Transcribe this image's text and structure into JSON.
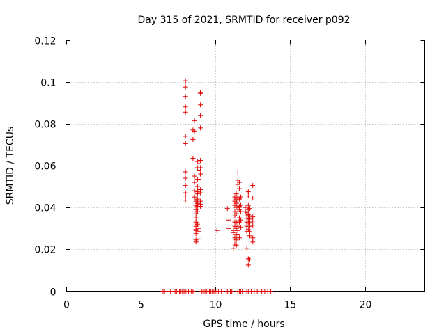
{
  "chart_data": {
    "type": "scatter",
    "title": "Day 315 of 2021, SRMTID for receiver p092",
    "xlabel": "GPS time / hours",
    "ylabel": "SRMTID / TECUs",
    "xlim": [
      0,
      24
    ],
    "ylim": [
      0,
      0.12
    ],
    "xticks": [
      0,
      5,
      10,
      15,
      20
    ],
    "xtick_labels": [
      "0",
      "5",
      "10",
      "15",
      "20"
    ],
    "yticks": [
      0,
      0.02,
      0.04,
      0.06,
      0.08,
      0.1,
      0.12
    ],
    "ytick_labels": [
      "0",
      "0.02",
      "0.04",
      "0.06",
      "0.08",
      "0.1",
      "0.12"
    ],
    "grid": true,
    "marker": "+",
    "color": "#e00000",
    "series": [
      {
        "name": "SRMTID",
        "x": [
          8.0,
          8.0,
          8.0,
          8.0,
          8.0,
          8.0,
          8.0,
          8.0,
          8.0,
          8.0,
          8.0,
          8.0,
          8.0,
          8.5,
          8.5,
          8.5,
          8.6,
          8.6,
          8.6,
          8.6,
          8.6,
          8.6,
          8.7,
          8.7,
          8.7,
          8.7,
          8.7,
          8.7,
          8.7,
          8.7,
          8.7,
          8.7,
          8.7,
          8.7,
          8.8,
          8.8,
          8.8,
          8.8,
          8.8,
          8.8,
          8.8,
          8.8,
          8.8,
          8.8,
          8.8,
          8.9,
          8.9,
          8.9,
          8.9,
          8.9,
          8.9,
          8.9,
          8.9,
          9.0,
          9.0,
          9.0,
          9.0,
          9.0,
          9.0,
          9.0,
          9.0,
          9.0,
          9.0,
          9.0,
          9.0,
          9.0,
          10.1,
          10.8,
          10.9,
          10.9,
          11.2,
          11.2,
          11.2,
          11.3,
          11.3,
          11.3,
          11.3,
          11.3,
          11.3,
          11.3,
          11.3,
          11.3,
          11.4,
          11.4,
          11.4,
          11.4,
          11.4,
          11.4,
          11.4,
          11.4,
          11.4,
          11.4,
          11.5,
          11.5,
          11.5,
          11.5,
          11.5,
          11.5,
          11.5,
          11.5,
          11.5,
          11.5,
          11.5,
          11.6,
          11.6,
          11.6,
          11.6,
          11.6,
          11.6,
          11.6,
          11.6,
          11.7,
          11.7,
          11.7,
          11.7,
          11.7,
          12.0,
          12.0,
          12.1,
          12.1,
          12.1,
          12.1,
          12.1,
          12.1,
          12.2,
          12.2,
          12.2,
          12.2,
          12.2,
          12.2,
          12.2,
          12.2,
          12.2,
          12.2,
          12.3,
          12.3,
          12.3,
          12.3,
          12.3,
          12.3,
          12.3,
          12.3,
          12.5,
          12.5,
          12.5,
          12.5,
          12.5,
          12.5,
          12.5,
          6.5,
          6.6,
          6.9,
          7.0,
          7.3,
          7.4,
          7.5,
          7.6,
          7.7,
          7.8,
          7.9,
          8.0,
          8.1,
          8.2,
          8.3,
          8.4,
          8.5,
          9.1,
          9.2,
          9.3,
          9.4,
          9.5,
          9.6,
          9.7,
          9.8,
          9.9,
          10.0,
          10.1,
          10.2,
          10.3,
          10.4,
          10.8,
          10.9,
          11.0,
          11.1,
          11.5,
          11.6,
          11.7,
          11.8,
          12.1,
          12.2,
          12.4,
          12.6,
          12.8,
          13.1,
          13.3,
          13.5,
          13.7
        ],
        "y": [
          0.1005,
          0.0975,
          0.093,
          0.088,
          0.0855,
          0.074,
          0.0705,
          0.057,
          0.054,
          0.0505,
          0.047,
          0.0455,
          0.0435,
          0.077,
          0.0725,
          0.0635,
          0.0815,
          0.0765,
          0.055,
          0.052,
          0.048,
          0.045,
          0.043,
          0.041,
          0.039,
          0.037,
          0.035,
          0.033,
          0.031,
          0.029,
          0.0275,
          0.0245,
          0.0235,
          0.0295,
          0.062,
          0.059,
          0.0535,
          0.05,
          0.0475,
          0.0465,
          0.044,
          0.042,
          0.0405,
          0.038,
          0.032,
          0.061,
          0.0575,
          0.0535,
          0.0485,
          0.042,
          0.03,
          0.0285,
          0.025,
          0.095,
          0.0945,
          0.089,
          0.084,
          0.078,
          0.0625,
          0.059,
          0.056,
          0.0485,
          0.047,
          0.043,
          0.0415,
          0.0405,
          0.029,
          0.0395,
          0.034,
          0.03,
          0.029,
          0.028,
          0.0205,
          0.045,
          0.043,
          0.041,
          0.038,
          0.036,
          0.033,
          0.031,
          0.0255,
          0.0225,
          0.0465,
          0.044,
          0.042,
          0.04,
          0.037,
          0.033,
          0.03,
          0.027,
          0.0245,
          0.022,
          0.0565,
          0.053,
          0.051,
          0.045,
          0.0425,
          0.04,
          0.038,
          0.033,
          0.031,
          0.029,
          0.027,
          0.052,
          0.049,
          0.044,
          0.0405,
          0.039,
          0.035,
          0.033,
          0.0255,
          0.045,
          0.041,
          0.038,
          0.034,
          0.0305,
          0.04,
          0.038,
          0.0375,
          0.036,
          0.033,
          0.031,
          0.0285,
          0.0205,
          0.0475,
          0.0455,
          0.041,
          0.039,
          0.0365,
          0.0345,
          0.0325,
          0.0295,
          0.0155,
          0.0125,
          0.0395,
          0.036,
          0.0345,
          0.033,
          0.031,
          0.0285,
          0.0265,
          0.015,
          0.0505,
          0.0445,
          0.0355,
          0.0335,
          0.0315,
          0.0255,
          0.0235,
          0,
          0,
          0,
          0,
          0,
          0,
          0,
          0,
          0,
          0,
          0,
          0,
          0,
          0,
          0,
          0,
          0,
          0,
          0,
          0,
          0,
          0,
          0,
          0,
          0,
          0,
          0,
          0,
          0,
          0,
          0,
          0,
          0,
          0,
          0,
          0,
          0,
          0,
          0,
          0,
          0,
          0,
          0,
          0,
          0,
          0,
          0,
          0
        ]
      }
    ]
  }
}
